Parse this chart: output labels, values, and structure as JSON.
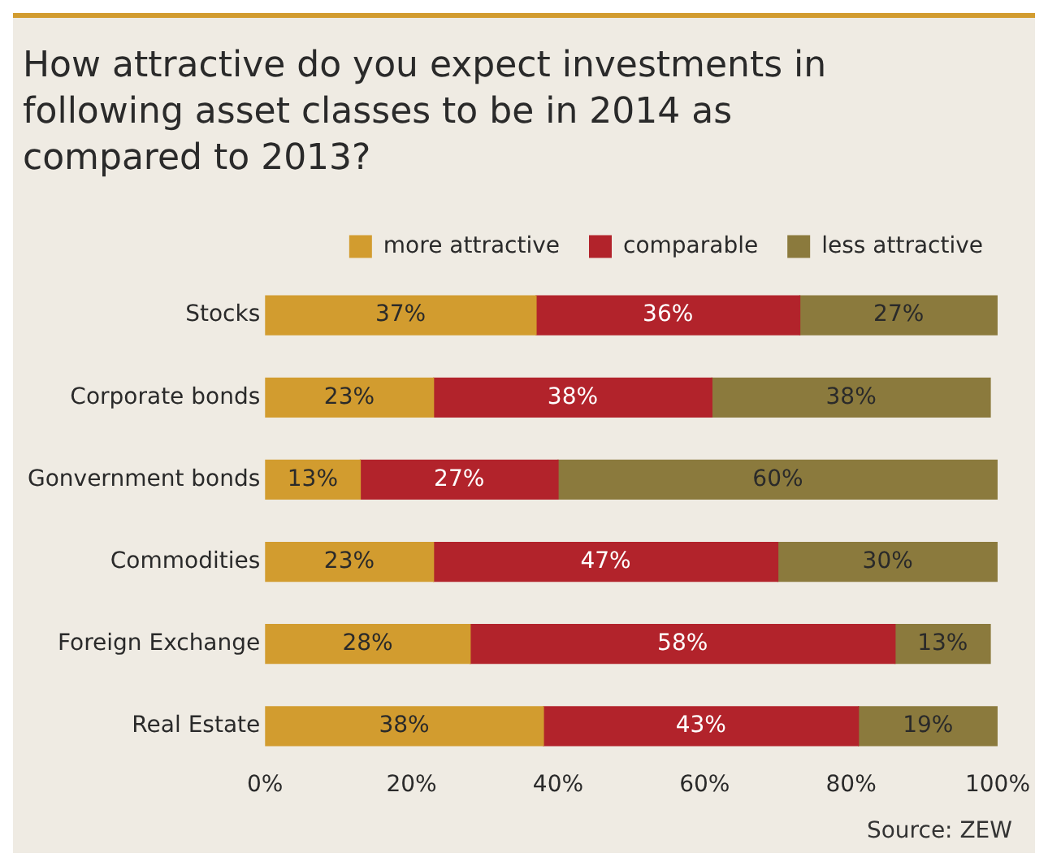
{
  "chart_data": {
    "type": "bar",
    "orientation": "horizontal",
    "stacked": true,
    "title": "How attractive do you expect investments in following asset classes to be in 2014 as compared to 2013?",
    "categories": [
      "Stocks",
      "Corporate bonds",
      "Gonvernment bonds",
      "Commodities",
      "Foreign Exchange",
      "Real Estate"
    ],
    "series": [
      {
        "name": "more attractive",
        "color": "#d29c2f",
        "values": [
          37,
          23,
          13,
          23,
          28,
          38
        ],
        "value_labels": [
          "37%",
          "23%",
          "13%",
          "23%",
          "28%",
          "38%"
        ]
      },
      {
        "name": "comparable",
        "color": "#b2232b",
        "values": [
          36,
          38,
          27,
          47,
          58,
          43
        ],
        "value_labels": [
          "36%",
          "38%",
          "27%",
          "47%",
          "58%",
          "43%"
        ]
      },
      {
        "name": "less attractive",
        "color": "#8b7a3d",
        "values": [
          27,
          38,
          60,
          30,
          13,
          19
        ],
        "value_labels": [
          "27%",
          "38%",
          "60%",
          "30%",
          "13%",
          "19%"
        ]
      }
    ],
    "xlim": [
      0,
      100
    ],
    "xticks": [
      {
        "value": 0,
        "label": "0%"
      },
      {
        "value": 20,
        "label": "20%"
      },
      {
        "value": 40,
        "label": "40%"
      },
      {
        "value": 60,
        "label": "60%"
      },
      {
        "value": 80,
        "label": "80%"
      },
      {
        "value": 100,
        "label": "100%"
      }
    ],
    "grid": false,
    "legend": "top",
    "annotations": [
      "Source: ZEW"
    ]
  }
}
